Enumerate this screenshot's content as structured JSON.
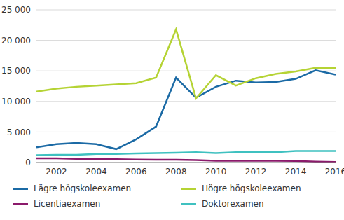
{
  "chart_data": {
    "type": "line",
    "x": [
      2001,
      2002,
      2003,
      2004,
      2005,
      2006,
      2007,
      2008,
      2009,
      2010,
      2011,
      2012,
      2013,
      2014,
      2015,
      2016
    ],
    "xlim": [
      2001,
      2016
    ],
    "xticks": [
      2002,
      2004,
      2006,
      2008,
      2010,
      2012,
      2014,
      2016
    ],
    "ylim": [
      0,
      25000
    ],
    "yticks": [
      0,
      {
        "value": 5000,
        "label": "5 000"
      },
      {
        "value": 10000,
        "label": "10 000"
      },
      {
        "value": 15000,
        "label": "15 000"
      },
      {
        "value": 20000,
        "label": "20 000"
      },
      {
        "value": 25000,
        "label": "25 000"
      }
    ],
    "grid": true,
    "legend": "bottom",
    "series": [
      {
        "name": "Lägre högskoleexamen",
        "color": "#1b6aa5",
        "values": [
          2500,
          3000,
          3200,
          3000,
          2200,
          3800,
          5900,
          13900,
          10600,
          12400,
          13400,
          13100,
          13200,
          13700,
          15100,
          14400
        ]
      },
      {
        "name": "Högre högskoleexamen",
        "color": "#b5d334",
        "values": [
          11600,
          12100,
          12400,
          12600,
          12800,
          13000,
          13900,
          21800,
          10500,
          14300,
          12600,
          13800,
          14500,
          14900,
          15500,
          15500
        ]
      },
      {
        "name": "Licentiaexamen",
        "color": "#8b1a6b",
        "values": [
          700,
          700,
          600,
          600,
          550,
          500,
          450,
          450,
          400,
          300,
          300,
          300,
          300,
          250,
          150,
          100
        ]
      },
      {
        "name": "Doktorexamen",
        "color": "#3fc1c0",
        "values": [
          1200,
          1250,
          1250,
          1400,
          1400,
          1500,
          1550,
          1600,
          1700,
          1550,
          1700,
          1700,
          1700,
          1900,
          1900,
          1900
        ]
      }
    ]
  }
}
